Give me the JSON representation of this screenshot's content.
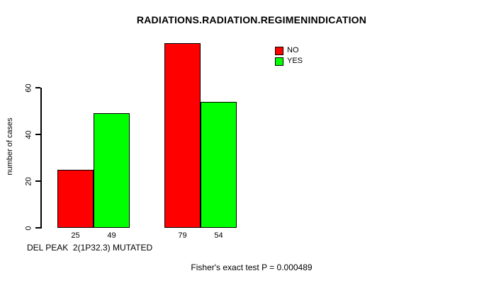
{
  "title": "RADIATIONS.RADIATION.REGIMENINDICATION",
  "footer": "Fisher's exact test P = 0.000489",
  "chart_data": {
    "type": "bar",
    "title": "RADIATIONS.RADIATION.REGIMENINDICATION",
    "xlabel": "DEL PEAK  2(1P32.3) MUTATED",
    "ylabel": "number of cases",
    "categories": [
      "",
      ""
    ],
    "series": [
      {
        "name": "NO",
        "color": "#FF0000",
        "values": [
          25,
          79
        ]
      },
      {
        "name": "YES",
        "color": "#00FF00",
        "values": [
          49,
          54
        ]
      }
    ],
    "bar_value_labels": [
      "25",
      "49",
      "79",
      "54"
    ],
    "yticks": [
      0,
      20,
      40,
      60
    ],
    "ylim": [
      0,
      80
    ],
    "grid": false,
    "legend_position": "top-right",
    "annotation": "Fisher's exact test P = 0.000489"
  }
}
